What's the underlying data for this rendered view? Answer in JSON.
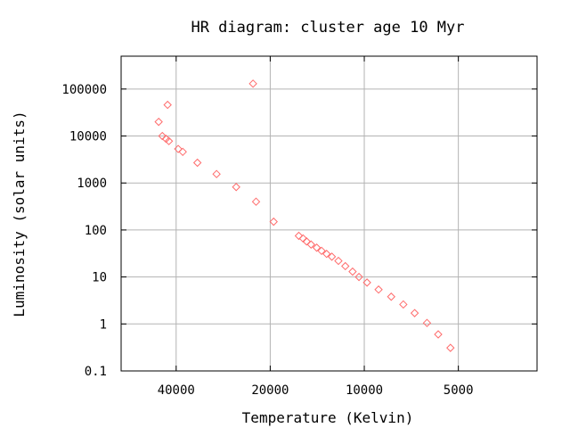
{
  "chart_data": {
    "type": "scatter",
    "title": "HR diagram: cluster age 10 Myr",
    "xlabel": "Temperature (Kelvin)",
    "ylabel": "Luminosity (solar units)",
    "x_scale": "log",
    "x_reversed": true,
    "y_scale": "log",
    "xlim": [
      60000,
      2800
    ],
    "ylim": [
      0.1,
      500000
    ],
    "x_ticks": [
      {
        "value": 40000,
        "label": "40000"
      },
      {
        "value": 20000,
        "label": "20000"
      },
      {
        "value": 10000,
        "label": "10000"
      },
      {
        "value": 5000,
        "label": "5000"
      }
    ],
    "y_ticks": [
      {
        "value": 0.1,
        "label": "0.1"
      },
      {
        "value": 1,
        "label": "1"
      },
      {
        "value": 10,
        "label": "10"
      },
      {
        "value": 100,
        "label": "100"
      },
      {
        "value": 1000,
        "label": "1000"
      },
      {
        "value": 10000,
        "label": "10000"
      },
      {
        "value": 100000,
        "label": "100000"
      }
    ],
    "grid": true,
    "marker": "diamond",
    "marker_color": "#ff6b6b",
    "points": [
      {
        "x": 45500,
        "y": 20000
      },
      {
        "x": 44300,
        "y": 10000
      },
      {
        "x": 42600,
        "y": 46000
      },
      {
        "x": 43100,
        "y": 8700
      },
      {
        "x": 42200,
        "y": 7800
      },
      {
        "x": 39400,
        "y": 5300
      },
      {
        "x": 38100,
        "y": 4600
      },
      {
        "x": 34200,
        "y": 2700
      },
      {
        "x": 29700,
        "y": 1550
      },
      {
        "x": 25700,
        "y": 820
      },
      {
        "x": 22700,
        "y": 130000
      },
      {
        "x": 22200,
        "y": 400
      },
      {
        "x": 19500,
        "y": 150
      },
      {
        "x": 16200,
        "y": 75
      },
      {
        "x": 15700,
        "y": 66
      },
      {
        "x": 15300,
        "y": 57
      },
      {
        "x": 14800,
        "y": 49
      },
      {
        "x": 14200,
        "y": 42
      },
      {
        "x": 13700,
        "y": 36
      },
      {
        "x": 13200,
        "y": 31
      },
      {
        "x": 12700,
        "y": 27
      },
      {
        "x": 12100,
        "y": 22
      },
      {
        "x": 11500,
        "y": 17
      },
      {
        "x": 10900,
        "y": 13
      },
      {
        "x": 10400,
        "y": 10
      },
      {
        "x": 9800,
        "y": 7.6
      },
      {
        "x": 9000,
        "y": 5.4
      },
      {
        "x": 8200,
        "y": 3.8
      },
      {
        "x": 7500,
        "y": 2.6
      },
      {
        "x": 6900,
        "y": 1.7
      },
      {
        "x": 6300,
        "y": 1.05
      },
      {
        "x": 5800,
        "y": 0.6
      },
      {
        "x": 5300,
        "y": 0.31
      }
    ]
  }
}
